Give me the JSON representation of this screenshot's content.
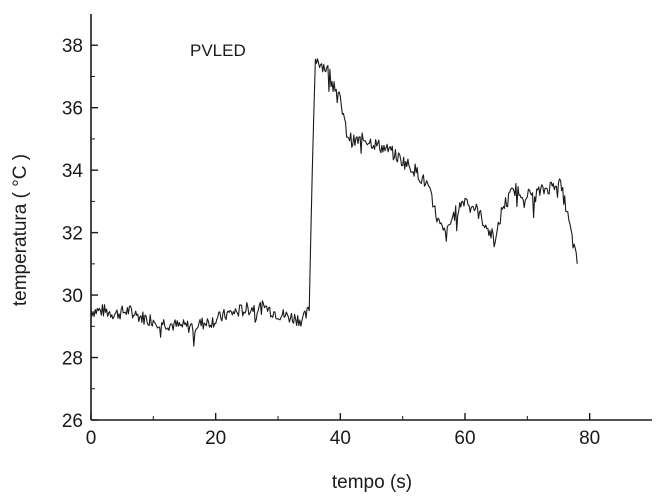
{
  "chart_data": {
    "type": "line",
    "title": "",
    "xlabel": "tempo (s)",
    "ylabel": "temperatura ( °C )",
    "annotation": "PVLED",
    "xlim": [
      0,
      90
    ],
    "ylim": [
      26,
      39
    ],
    "x_ticks": [
      0,
      20,
      40,
      60,
      80
    ],
    "y_ticks": [
      26,
      28,
      30,
      32,
      34,
      36,
      38
    ],
    "grid": false,
    "legend": "none",
    "line_color": "#1a1a1a",
    "series": [
      {
        "x": [
          0,
          2,
          4,
          6,
          8,
          10,
          12,
          14,
          16,
          18,
          20,
          22,
          24,
          26,
          28,
          30,
          32,
          34,
          35,
          35.5,
          36,
          37,
          38,
          39,
          40,
          41,
          42,
          44,
          46,
          48,
          50,
          52,
          54,
          55,
          56,
          57,
          58,
          60,
          62,
          64,
          65,
          66,
          68,
          70,
          72,
          74,
          75,
          76,
          77,
          78
        ],
        "y": [
          29.5,
          29.5,
          29.4,
          29.5,
          29.3,
          29.2,
          29.1,
          29.0,
          29.0,
          29.1,
          29.2,
          29.4,
          29.5,
          29.6,
          29.6,
          29.4,
          29.3,
          29.2,
          29.5,
          34.0,
          37.6,
          37.4,
          37.2,
          36.8,
          36.2,
          35.2,
          34.9,
          35.0,
          34.8,
          34.6,
          34.3,
          34.0,
          33.5,
          32.8,
          32.2,
          31.9,
          32.5,
          33.1,
          32.7,
          32.0,
          31.8,
          32.8,
          33.4,
          33.2,
          33.3,
          33.5,
          33.7,
          33.0,
          32.0,
          31.0
        ]
      }
    ],
    "noise_amplitude": 0.22
  }
}
